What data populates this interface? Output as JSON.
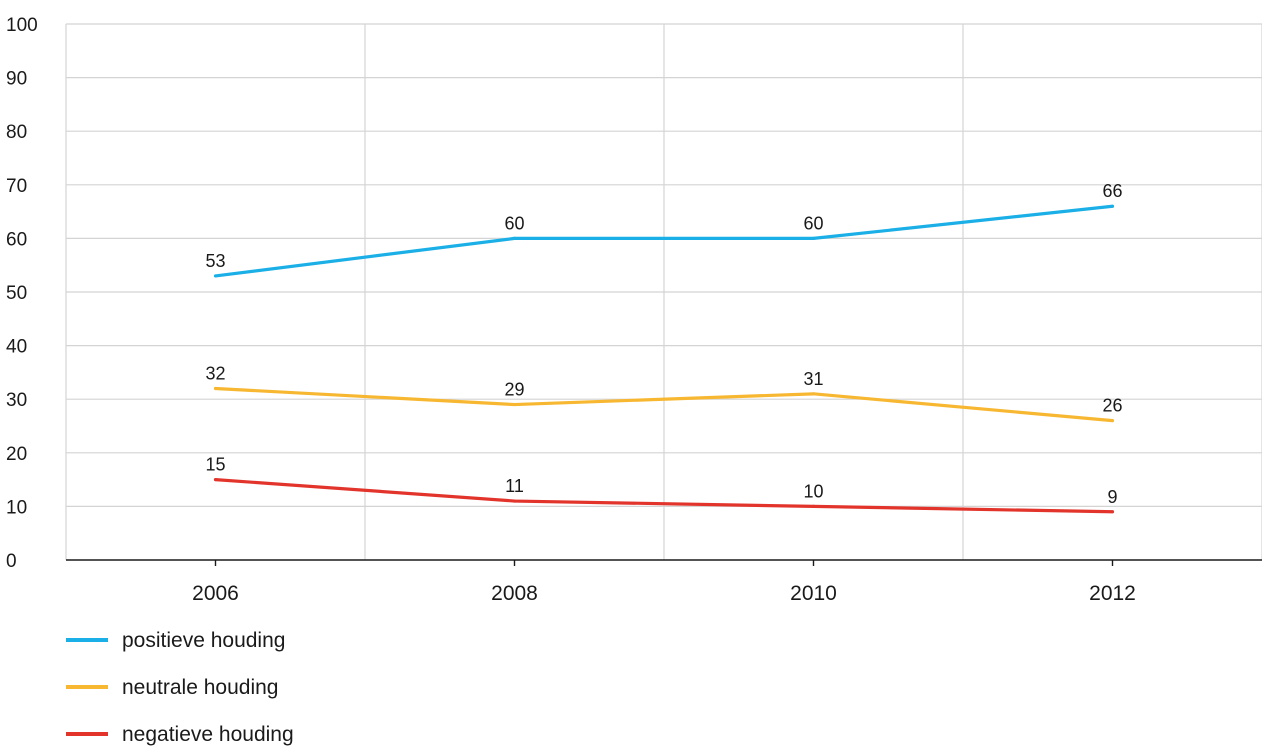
{
  "chart_data": {
    "type": "line",
    "categories": [
      "2006",
      "2008",
      "2010",
      "2012"
    ],
    "series": [
      {
        "name": "positieve houding",
        "color": "#1aafe6",
        "values": [
          53,
          60,
          60,
          66
        ]
      },
      {
        "name": "neutrale houding",
        "color": "#f7b731",
        "values": [
          32,
          29,
          31,
          26
        ]
      },
      {
        "name": "negatieve houding",
        "color": "#e2342b",
        "values": [
          15,
          11,
          10,
          9
        ]
      }
    ],
    "yticks": [
      "0",
      "10",
      "20",
      "30",
      "40",
      "50",
      "60",
      "70",
      "80",
      "90",
      "100"
    ],
    "ylim": [
      0,
      100
    ],
    "grid": true,
    "legend_position": "bottom-left"
  }
}
